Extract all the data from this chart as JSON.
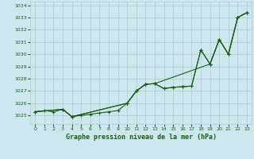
{
  "title": "Graphe pression niveau de la mer (hPa)",
  "background_color": "#cce8ee",
  "grid_color": "#aacccc",
  "line_color": "#1a5c1a",
  "xlim": [
    -0.5,
    23.5
  ],
  "ylim": [
    1024.3,
    1034.3
  ],
  "yticks": [
    1025,
    1026,
    1027,
    1028,
    1029,
    1030,
    1031,
    1032,
    1033,
    1034
  ],
  "xticks": [
    0,
    1,
    2,
    3,
    4,
    5,
    6,
    7,
    8,
    9,
    10,
    11,
    12,
    13,
    14,
    15,
    16,
    17,
    18,
    19,
    20,
    21,
    22,
    23
  ],
  "series1_x": [
    0,
    1,
    2,
    3,
    4,
    5,
    6,
    7,
    8,
    9,
    10,
    11,
    12,
    13,
    14,
    15,
    16,
    17,
    18,
    19,
    20,
    21,
    22,
    23
  ],
  "series1_y": [
    1025.3,
    1025.4,
    1025.3,
    1025.5,
    1024.9,
    1025.0,
    1025.1,
    1025.2,
    1025.3,
    1025.4,
    1026.0,
    1027.0,
    1027.55,
    1027.6,
    1027.2,
    1027.3,
    1027.35,
    1027.4,
    1030.35,
    1029.2,
    1031.2,
    1030.0,
    1033.0,
    1033.4
  ],
  "series2_x": [
    0,
    3,
    4,
    10,
    11,
    12,
    13,
    19,
    20,
    21,
    22,
    23
  ],
  "series2_y": [
    1025.3,
    1025.5,
    1024.9,
    1026.0,
    1027.0,
    1027.55,
    1027.6,
    1029.2,
    1031.2,
    1030.0,
    1033.0,
    1033.4
  ],
  "series3_x": [
    0,
    3,
    4,
    10,
    11,
    12,
    13,
    14,
    15,
    16,
    17,
    18,
    19,
    20,
    21,
    22,
    23
  ],
  "series3_y": [
    1025.3,
    1025.5,
    1024.9,
    1026.0,
    1027.0,
    1027.55,
    1027.6,
    1027.2,
    1027.3,
    1027.35,
    1027.4,
    1030.35,
    1029.2,
    1031.2,
    1030.0,
    1033.0,
    1033.4
  ]
}
